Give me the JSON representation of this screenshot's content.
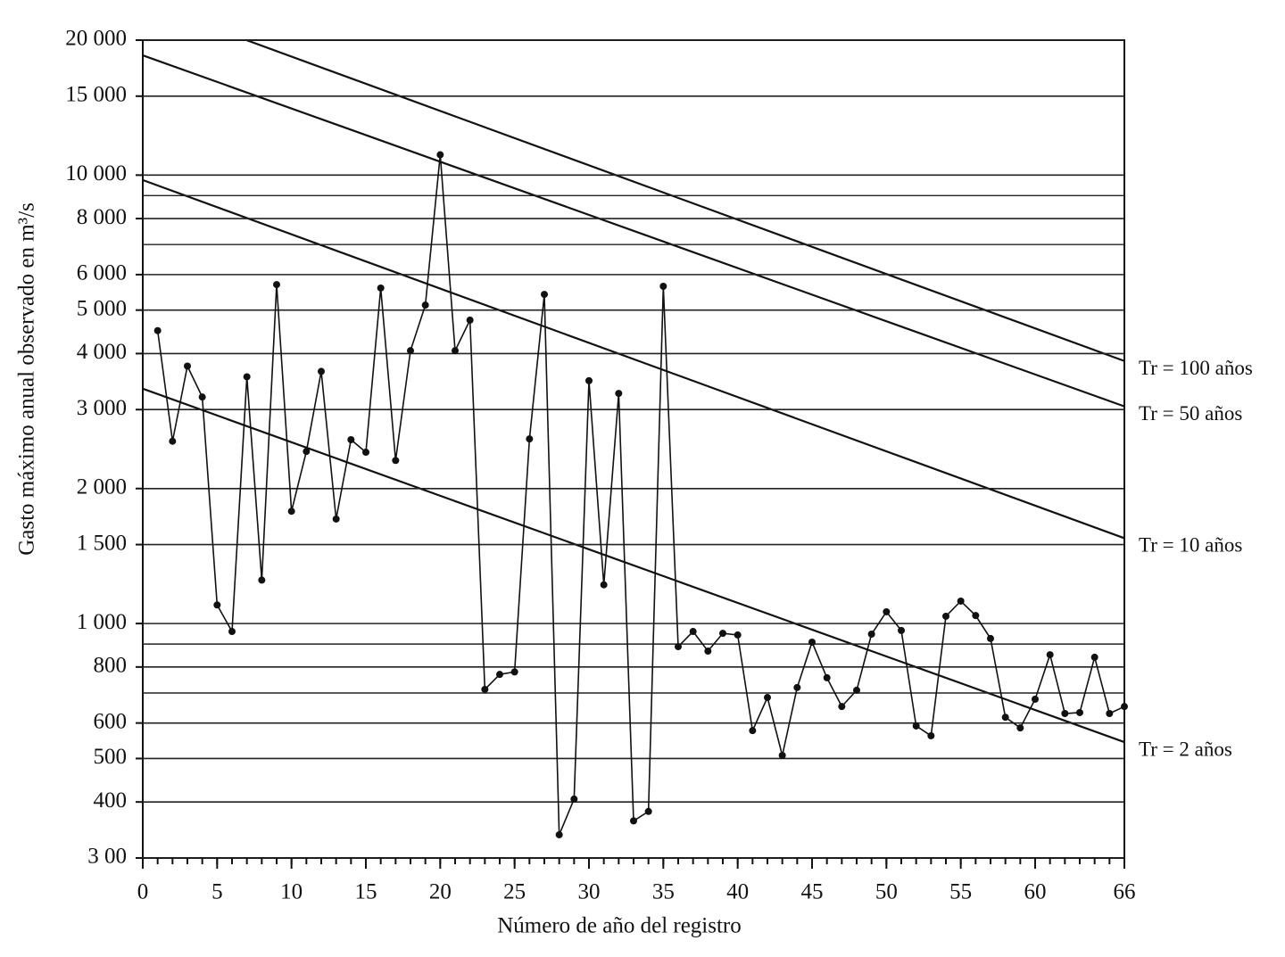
{
  "chart_data": {
    "type": "line",
    "y_label": "Gasto máximo anual observado en m³/s",
    "x_label": "Número de año del registro",
    "log_y": true,
    "grid": true,
    "color": "#111111",
    "xlim": [
      0,
      66
    ],
    "ylim": [
      300,
      20000
    ],
    "xticks": [
      0,
      5,
      10,
      15,
      20,
      25,
      30,
      35,
      40,
      45,
      50,
      55,
      60,
      66
    ],
    "xminor_every": 1,
    "yticks": [
      {
        "value": 20000,
        "label": "20 000"
      },
      {
        "value": 15000,
        "label": "15 000"
      },
      {
        "value": 10000,
        "label": "10 000"
      },
      {
        "value": 8000,
        "label": "8 000"
      },
      {
        "value": 6000,
        "label": "6 000"
      },
      {
        "value": 5000,
        "label": "5 000"
      },
      {
        "value": 4000,
        "label": "4 000"
      },
      {
        "value": 3000,
        "label": "3 000"
      },
      {
        "value": 2000,
        "label": "2 000"
      },
      {
        "value": 1500,
        "label": "1 500"
      },
      {
        "value": 1000,
        "label": "1 000"
      },
      800,
      600,
      500,
      400,
      {
        "value": 300,
        "label": "3 00"
      }
    ],
    "minor_grid": [
      9000,
      7000,
      900,
      700
    ],
    "x": [
      1,
      2,
      3,
      4,
      5,
      6,
      7,
      8,
      9,
      10,
      11,
      12,
      13,
      14,
      15,
      16,
      17,
      18,
      19,
      20,
      21,
      22,
      23,
      24,
      25,
      26,
      27,
      28,
      29,
      30,
      31,
      32,
      33,
      34,
      35,
      36,
      37,
      38,
      39,
      40,
      41,
      42,
      43,
      44,
      45,
      46,
      47,
      48,
      49,
      50,
      51,
      52,
      53,
      54,
      55,
      56,
      57,
      58,
      59,
      60,
      61,
      62,
      63,
      64,
      65,
      66
    ],
    "series": [
      {
        "color": "#111111",
        "values": [
          4500,
          2550,
          3750,
          3200,
          1100,
          960,
          3550,
          1250,
          5700,
          1780,
          2420,
          3650,
          1710,
          2570,
          2410,
          5600,
          2310,
          4060,
          5130,
          11100,
          4060,
          4750,
          713,
          770,
          780,
          2580,
          5420,
          338,
          406,
          3480,
          1220,
          3260,
          363,
          381,
          5650,
          888,
          960,
          868,
          951,
          943,
          577,
          684,
          508,
          720,
          909,
          757,
          653,
          710,
          947,
          1062,
          965,
          591,
          562,
          1038,
          1122,
          1042,
          926,
          618,
          585,
          678,
          852,
          630,
          633,
          841,
          630,
          653
        ]
      }
    ],
    "reference_lines": [
      {
        "name": "Tr = 100 años",
        "x": [
          0,
          66
        ],
        "values": [
          24300,
          3850
        ]
      },
      {
        "name": "Tr = 50 años",
        "x": [
          0,
          66
        ],
        "values": [
          18500,
          3050
        ]
      },
      {
        "name": "Tr = 10 años",
        "x": [
          0,
          66
        ],
        "values": [
          9750,
          1550
        ]
      },
      {
        "name": "Tr = 2 años",
        "x": [
          0,
          66
        ],
        "values": [
          3340,
          544
        ]
      }
    ]
  }
}
